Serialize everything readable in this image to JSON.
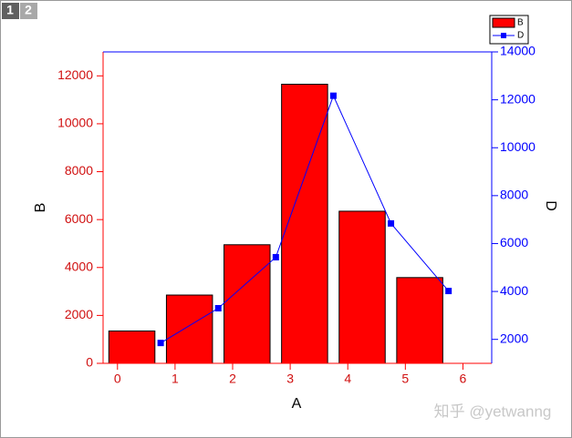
{
  "tabs": [
    "1",
    "2"
  ],
  "watermark": "知乎 @yetwanng",
  "chart_data": {
    "type": "bar",
    "x_label": "A",
    "y_label": "B",
    "y2_label": "D",
    "xlim": [
      -0.25,
      6.5
    ],
    "xticks": [
      0,
      1,
      2,
      3,
      4,
      5,
      6
    ],
    "ylim": [
      0,
      13000
    ],
    "yticks": [
      0,
      2000,
      4000,
      6000,
      8000,
      10000,
      12000
    ],
    "y2lim": [
      1000,
      14000
    ],
    "y2ticks": [
      2000,
      4000,
      6000,
      8000,
      10000,
      12000,
      14000
    ],
    "series": [
      {
        "name": "B",
        "type": "bar",
        "color": "#ff0000",
        "x": [
          0.25,
          1.25,
          2.25,
          3.25,
          4.25,
          5.25
        ],
        "values": [
          1350,
          2850,
          4950,
          11650,
          6350,
          3580
        ]
      },
      {
        "name": "D",
        "type": "line",
        "axis": "y2",
        "color": "#0000ff",
        "x": [
          0.75,
          1.75,
          2.75,
          3.75,
          4.75,
          5.75
        ],
        "values": [
          1850,
          3300,
          5430,
          12170,
          6840,
          4020
        ]
      }
    ]
  }
}
